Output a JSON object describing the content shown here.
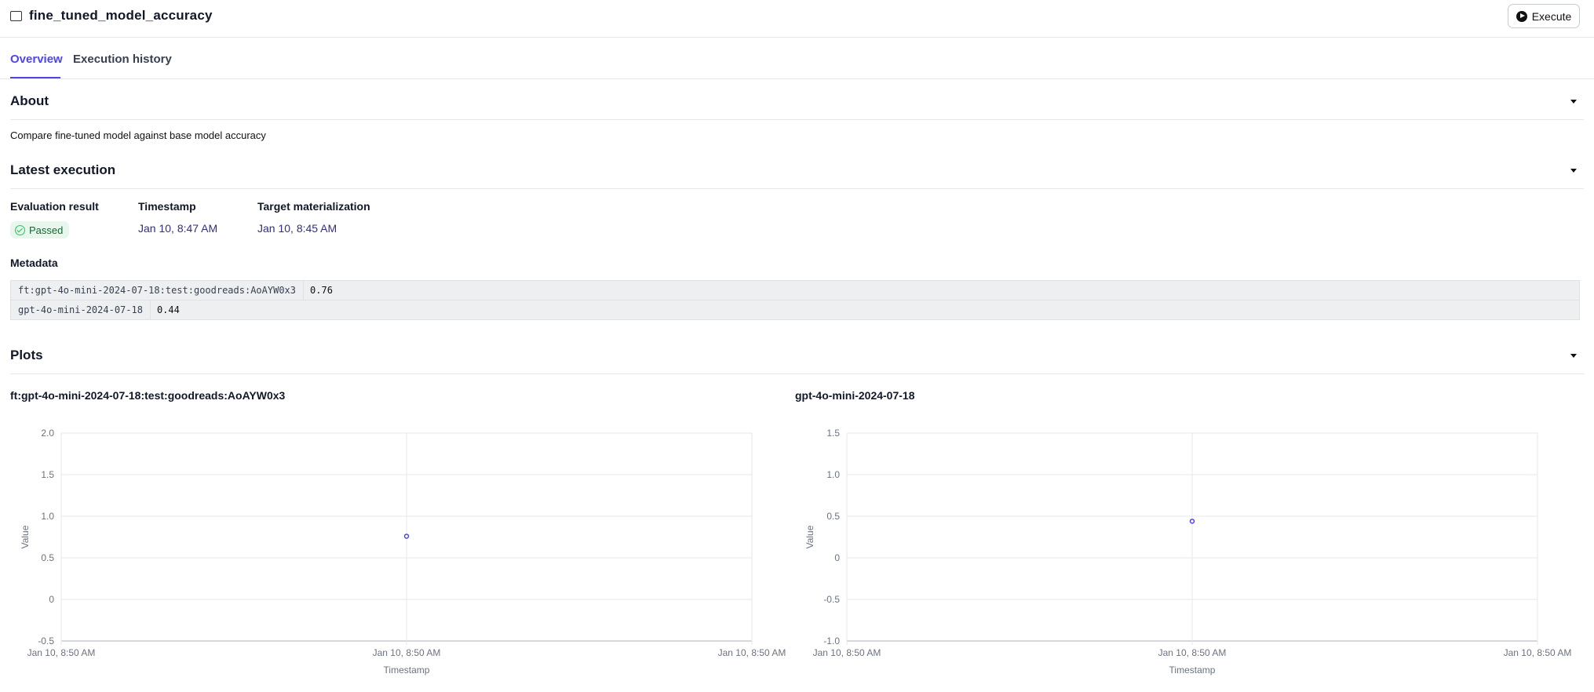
{
  "header": {
    "title": "fine_tuned_model_accuracy",
    "icon": "report-check-icon",
    "execute_label": "Execute"
  },
  "tabs": [
    {
      "label": "Overview",
      "active": true
    },
    {
      "label": "Execution history",
      "active": false
    }
  ],
  "about": {
    "title": "About",
    "description": "Compare fine-tuned model against base model accuracy"
  },
  "latest": {
    "title": "Latest execution",
    "eval_label": "Evaluation result",
    "eval_value": "Passed",
    "ts_label": "Timestamp",
    "ts_value": "Jan 10, 8:47 AM",
    "target_label": "Target materialization",
    "target_value": "Jan 10, 8:45 AM",
    "metadata_label": "Metadata",
    "metadata": [
      {
        "key": "ft:gpt-4o-mini-2024-07-18:test:goodreads:AoAYW0x3",
        "value": "0.76"
      },
      {
        "key": "gpt-4o-mini-2024-07-18",
        "value": "0.44"
      }
    ]
  },
  "plots": {
    "title": "Plots"
  },
  "colors": {
    "accent": "#4f46e5",
    "passed_bg": "#e7f7ec",
    "passed_fg": "#166534",
    "date": "#312e81"
  },
  "chart_data": [
    {
      "type": "scatter",
      "title": "ft:gpt-4o-mini-2024-07-18:test:goodreads:AoAYW0x3",
      "xlabel": "Timestamp",
      "ylabel": "Value",
      "x_ticks": [
        "Jan 10, 8:50 AM",
        "Jan 10, 8:50 AM",
        "Jan 10, 8:50 AM"
      ],
      "y_ticks": [
        "2.0",
        "1.5",
        "1.0",
        "0.5",
        "0",
        "-0.5"
      ],
      "ylim": [
        -0.5,
        2.0
      ],
      "grid": true,
      "points": [
        {
          "x": "Jan 10, 8:50 AM",
          "y": 0.76
        }
      ]
    },
    {
      "type": "scatter",
      "title": "gpt-4o-mini-2024-07-18",
      "xlabel": "Timestamp",
      "ylabel": "Value",
      "x_ticks": [
        "Jan 10, 8:50 AM",
        "Jan 10, 8:50 AM",
        "Jan 10, 8:50 AM"
      ],
      "y_ticks": [
        "1.5",
        "1.0",
        "0.5",
        "0",
        "-0.5",
        "-1.0"
      ],
      "ylim": [
        -1.0,
        1.5
      ],
      "grid": true,
      "points": [
        {
          "x": "Jan 10, 8:50 AM",
          "y": 0.44
        }
      ]
    }
  ]
}
